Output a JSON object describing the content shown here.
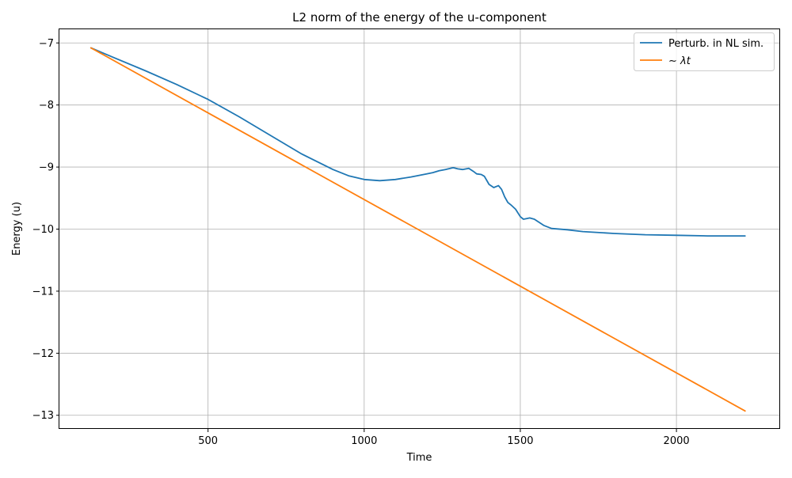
{
  "chart_data": {
    "type": "line",
    "title": "L2 norm of the energy of the u-component",
    "xlabel": "Time",
    "ylabel": "Energy (u)",
    "xlim": [
      24,
      2332
    ],
    "ylim": [
      -13.22,
      -6.78
    ],
    "xticks": [
      {
        "value": 500,
        "label": "500"
      },
      {
        "value": 1000,
        "label": "1000"
      },
      {
        "value": 1500,
        "label": "1500"
      },
      {
        "value": 2000,
        "label": "2000"
      }
    ],
    "yticks": [
      {
        "value": -7,
        "label": "−7"
      },
      {
        "value": -8,
        "label": "−8"
      },
      {
        "value": -9,
        "label": "−9"
      },
      {
        "value": -10,
        "label": "−10"
      },
      {
        "value": -11,
        "label": "−11"
      },
      {
        "value": -12,
        "label": "−12"
      },
      {
        "value": -13,
        "label": "−13"
      }
    ],
    "grid": true,
    "legend_position": "top-right",
    "series": [
      {
        "name": "Perturb. in NL sim.",
        "color": "#1f77b4",
        "x": [
          125,
          200,
          300,
          400,
          500,
          600,
          700,
          800,
          900,
          950,
          1000,
          1050,
          1100,
          1150,
          1200,
          1220,
          1240,
          1260,
          1285,
          1300,
          1315,
          1335,
          1350,
          1360,
          1375,
          1385,
          1400,
          1415,
          1430,
          1440,
          1450,
          1460,
          1470,
          1485,
          1500,
          1510,
          1520,
          1530,
          1545,
          1560,
          1575,
          1600,
          1650,
          1700,
          1800,
          1900,
          2000,
          2100,
          2220
        ],
        "y": [
          -7.08,
          -7.24,
          -7.45,
          -7.67,
          -7.91,
          -8.19,
          -8.49,
          -8.79,
          -9.04,
          -9.14,
          -9.2,
          -9.22,
          -9.2,
          -9.16,
          -9.11,
          -9.09,
          -9.06,
          -9.04,
          -9.01,
          -9.03,
          -9.04,
          -9.02,
          -9.07,
          -9.11,
          -9.12,
          -9.15,
          -9.28,
          -9.33,
          -9.3,
          -9.36,
          -9.48,
          -9.57,
          -9.61,
          -9.68,
          -9.8,
          -9.84,
          -9.83,
          -9.82,
          -9.84,
          -9.89,
          -9.94,
          -9.99,
          -10.01,
          -10.04,
          -10.07,
          -10.09,
          -10.1,
          -10.11,
          -10.11
        ]
      },
      {
        "name": "∼ λt",
        "color": "#ff7f0e",
        "x": [
          125,
          2220
        ],
        "y": [
          -7.08,
          -12.93
        ]
      }
    ]
  }
}
